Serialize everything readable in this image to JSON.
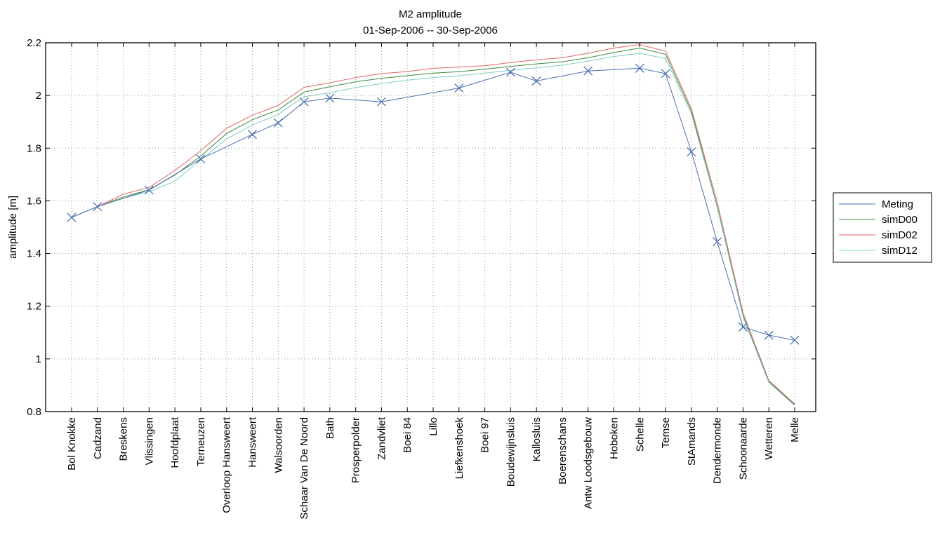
{
  "chart_data": {
    "type": "line",
    "title": "M2 amplitude",
    "subtitle": "01-Sep-2006 -- 30-Sep-2006",
    "xlabel": "",
    "ylabel": "amplitude [m]",
    "ylim": [
      0.8,
      2.2
    ],
    "yticks": [
      "0.8",
      "1",
      "1.2",
      "1.4",
      "1.6",
      "1.8",
      "2",
      "2.2"
    ],
    "grid": true,
    "legend_position": "right",
    "categories": [
      "Bol Knokke",
      "Cadzand",
      "Breskens",
      "Vlissingen",
      "Hoofdplaat",
      "Terneuzen",
      "Overloop Hansweert",
      "Hansweert",
      "Walsoorden",
      "Schaar Van De Noord",
      "Bath",
      "Prosperpolder",
      "Zandvliet",
      "Boei 84",
      "Lillo",
      "Liefkenshoek",
      "Boei 97",
      "Boudewijnsluis",
      "Kallosluis",
      "Boerenschans",
      "Antw Loodsgebouw",
      "Hoboken",
      "Schelle",
      "Temse",
      "StAmands",
      "Dendermonde",
      "Schoonaarde",
      "Wetteren",
      "Melle"
    ],
    "series": [
      {
        "name": "Meting",
        "color": "#4a6fb0",
        "marker": "x",
        "values": [
          1.537,
          1.578,
          null,
          1.641,
          null,
          1.759,
          null,
          1.852,
          1.896,
          1.976,
          1.99,
          null,
          1.976,
          null,
          null,
          2.028,
          null,
          2.088,
          2.055,
          null,
          2.093,
          null,
          2.103,
          2.083,
          1.786,
          1.445,
          1.121,
          1.09,
          1.071
        ]
      },
      {
        "name": "simD00",
        "color": "#3e8a3e",
        "values": [
          1.537,
          1.578,
          1.615,
          1.642,
          1.698,
          1.77,
          1.855,
          1.908,
          1.945,
          2.013,
          2.033,
          2.052,
          2.065,
          2.075,
          2.085,
          2.09,
          2.1,
          2.11,
          2.12,
          2.128,
          2.143,
          2.163,
          2.18,
          2.156,
          1.94,
          1.58,
          1.165,
          0.915,
          0.826
        ]
      },
      {
        "name": "simD02",
        "color": "#e06666",
        "values": [
          1.537,
          1.578,
          1.625,
          1.651,
          1.715,
          1.79,
          1.875,
          1.925,
          1.962,
          2.031,
          2.048,
          2.068,
          2.083,
          2.091,
          2.103,
          2.108,
          2.113,
          2.125,
          2.135,
          2.143,
          2.16,
          2.18,
          2.193,
          2.168,
          1.95,
          1.595,
          1.175,
          0.918,
          0.829
        ]
      },
      {
        "name": "simD12",
        "color": "#7ccfc6",
        "values": [
          1.537,
          1.578,
          1.61,
          1.635,
          1.675,
          1.755,
          1.835,
          1.888,
          1.928,
          1.995,
          2.011,
          2.03,
          2.045,
          2.058,
          2.068,
          2.075,
          2.085,
          2.095,
          2.105,
          2.115,
          2.13,
          2.148,
          2.16,
          2.14,
          1.93,
          1.575,
          1.16,
          0.91,
          0.823
        ]
      }
    ]
  }
}
